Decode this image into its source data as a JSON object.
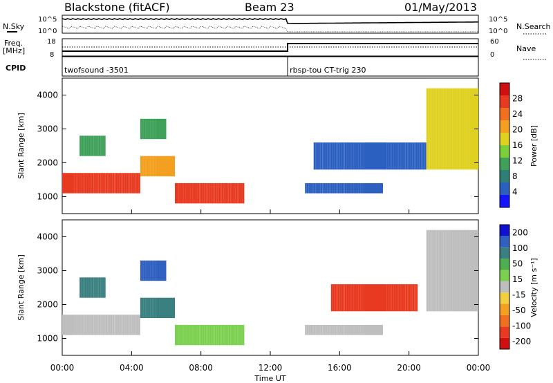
{
  "header": {
    "station": "Blackstone (fitACF)",
    "beam": "Beam 23",
    "date": "01/May/2013"
  },
  "aux_labels": {
    "nsky": "N.Sky",
    "nsearch": "N.Search",
    "nsky_top": "10^5",
    "nsky_bottom": "10^0",
    "nsearch_top": "10^5",
    "nsearch_bottom": "10^0",
    "freq": "Freq.",
    "mhz": "[MHz]",
    "freq_top": "18",
    "freq_bottom": "8",
    "nave": "Nave",
    "nave_top": "60",
    "nave_bottom": "0",
    "cpid": "CPID"
  },
  "cpid_segments": [
    {
      "label": "twofsound -3501",
      "start_hour": 0,
      "end_hour": 13
    },
    {
      "label": "rbsp-tou CT-trig 230",
      "start_hour": 13,
      "end_hour": 24
    }
  ],
  "colors": {
    "power": [
      "#1414ff",
      "#2b5fc0",
      "#2f7f78",
      "#3fa05a",
      "#7ccf3a",
      "#e0d020",
      "#f3a020",
      "#f07020",
      "#e83a20",
      "#d01010"
    ],
    "velocity": [
      "#1010d0",
      "#3060c0",
      "#3a8080",
      "#4fae4f",
      "#7cd050",
      "#bebebe",
      "#f0d040",
      "#f3a020",
      "#f07020",
      "#e83a20",
      "#d01010"
    ]
  },
  "chart_data": [
    {
      "type": "heatmap",
      "title": "Power",
      "xlabel": "Time UT",
      "ylabel": "Slant Range [km]",
      "xticks": [
        "00:00",
        "04:00",
        "08:00",
        "12:00",
        "16:00",
        "20:00",
        "00:00"
      ],
      "xlim_hours": [
        0,
        24
      ],
      "yticks": [
        "1000",
        "2000",
        "3000",
        "4000"
      ],
      "ylim": [
        500,
        4500
      ],
      "colorbar_label": "Power [dB]",
      "colorbar_ticks": [
        "4",
        "8",
        "12",
        "16",
        "20",
        "24",
        "28"
      ],
      "colorbar_range": [
        0,
        32
      ],
      "echo_bands": [
        {
          "t0": 0.0,
          "t1": 4.5,
          "r0": 1100,
          "r1": 1700,
          "value": 28
        },
        {
          "t0": 4.5,
          "t1": 6.5,
          "r0": 1600,
          "r1": 2200,
          "value": 22
        },
        {
          "t0": 6.5,
          "t1": 10.5,
          "r0": 800,
          "r1": 1400,
          "value": 26
        },
        {
          "t0": 1.0,
          "t1": 2.5,
          "r0": 2200,
          "r1": 2800,
          "value": 12
        },
        {
          "t0": 4.5,
          "t1": 6.0,
          "r0": 2700,
          "r1": 3300,
          "value": 10
        },
        {
          "t0": 14.0,
          "t1": 18.5,
          "r0": 1100,
          "r1": 1400,
          "value": 6
        },
        {
          "t0": 14.5,
          "t1": 21.0,
          "r0": 1800,
          "r1": 2600,
          "value": 6
        },
        {
          "t0": 21.0,
          "t1": 24.0,
          "r0": 1800,
          "r1": 4200,
          "value": 16
        }
      ]
    },
    {
      "type": "heatmap",
      "title": "Velocity",
      "xlabel": "Time UT",
      "ylabel": "Slant Range [km]",
      "xticks": [
        "00:00",
        "04:00",
        "08:00",
        "12:00",
        "16:00",
        "20:00",
        "00:00"
      ],
      "xlim_hours": [
        0,
        24
      ],
      "yticks": [
        "1000",
        "2000",
        "3000",
        "4000"
      ],
      "ylim": [
        500,
        4500
      ],
      "colorbar_label": "Velocity [m s⁻¹]",
      "colorbar_ticks": [
        "200",
        "100",
        "50",
        "15",
        "-15",
        "-50",
        "-100",
        "-200"
      ],
      "colorbar_range": [
        -250,
        250
      ],
      "echo_bands": [
        {
          "t0": 0.0,
          "t1": 4.5,
          "r0": 1100,
          "r1": 1700,
          "value": 0
        },
        {
          "t0": 4.5,
          "t1": 6.5,
          "r0": 1600,
          "r1": 2200,
          "value": 150
        },
        {
          "t0": 6.5,
          "t1": 10.5,
          "r0": 800,
          "r1": 1400,
          "value": 40
        },
        {
          "t0": 1.0,
          "t1": 2.5,
          "r0": 2200,
          "r1": 2800,
          "value": 120
        },
        {
          "t0": 4.5,
          "t1": 6.0,
          "r0": 2700,
          "r1": 3300,
          "value": 160
        },
        {
          "t0": 14.0,
          "t1": 18.5,
          "r0": 1100,
          "r1": 1400,
          "value": 0
        },
        {
          "t0": 15.5,
          "t1": 20.5,
          "r0": 1800,
          "r1": 2600,
          "value": -180
        },
        {
          "t0": 21.0,
          "t1": 24.0,
          "r0": 1800,
          "r1": 4200,
          "value": 0
        }
      ]
    }
  ]
}
